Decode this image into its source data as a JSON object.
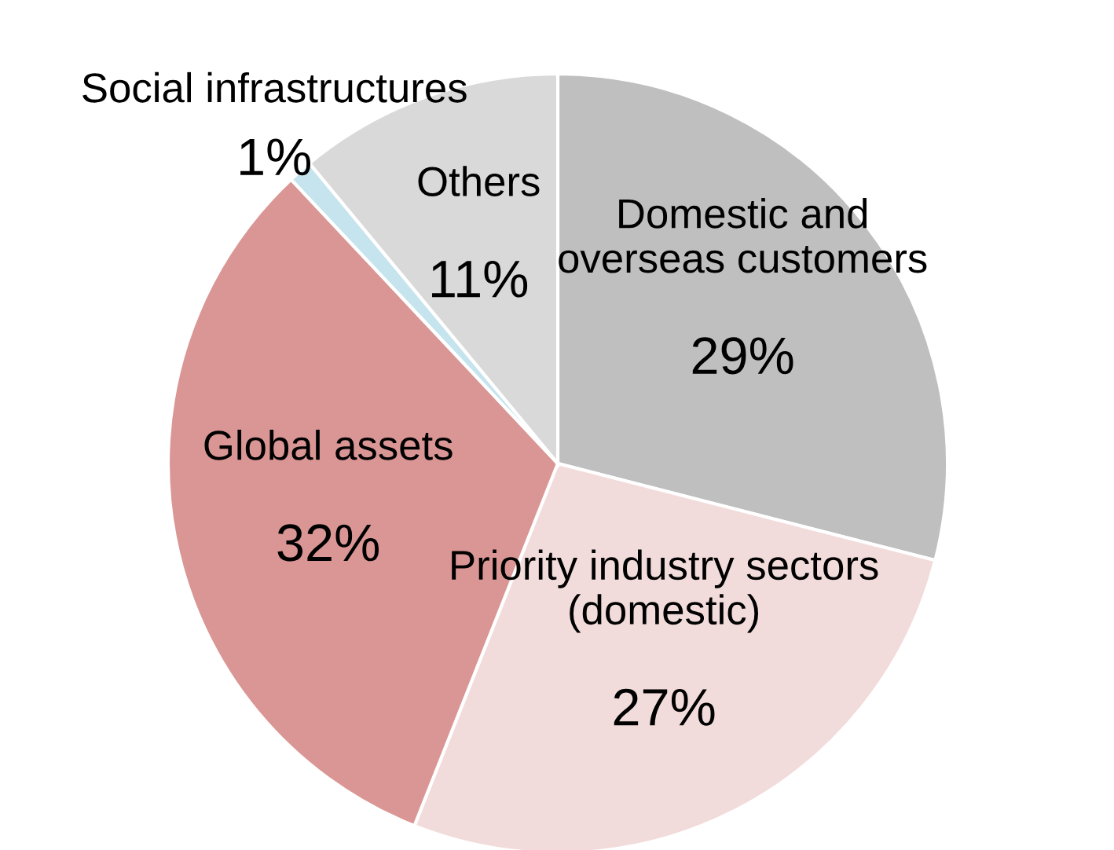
{
  "chart_data": {
    "type": "pie",
    "categories": [
      "Domestic and\noverseas customers",
      "Priority industry sectors\n(domestic)",
      "Global assets",
      "Social infrastructures",
      "Others"
    ],
    "values": [
      29,
      27,
      32,
      1,
      11
    ],
    "value_labels": [
      "29%",
      "27%",
      "32%",
      "1%",
      "11%"
    ],
    "colors": [
      "#bfbfbf",
      "#f2dcdb",
      "#d99694",
      "#c6e4ee",
      "#d9d9d9"
    ],
    "legend": false
  }
}
